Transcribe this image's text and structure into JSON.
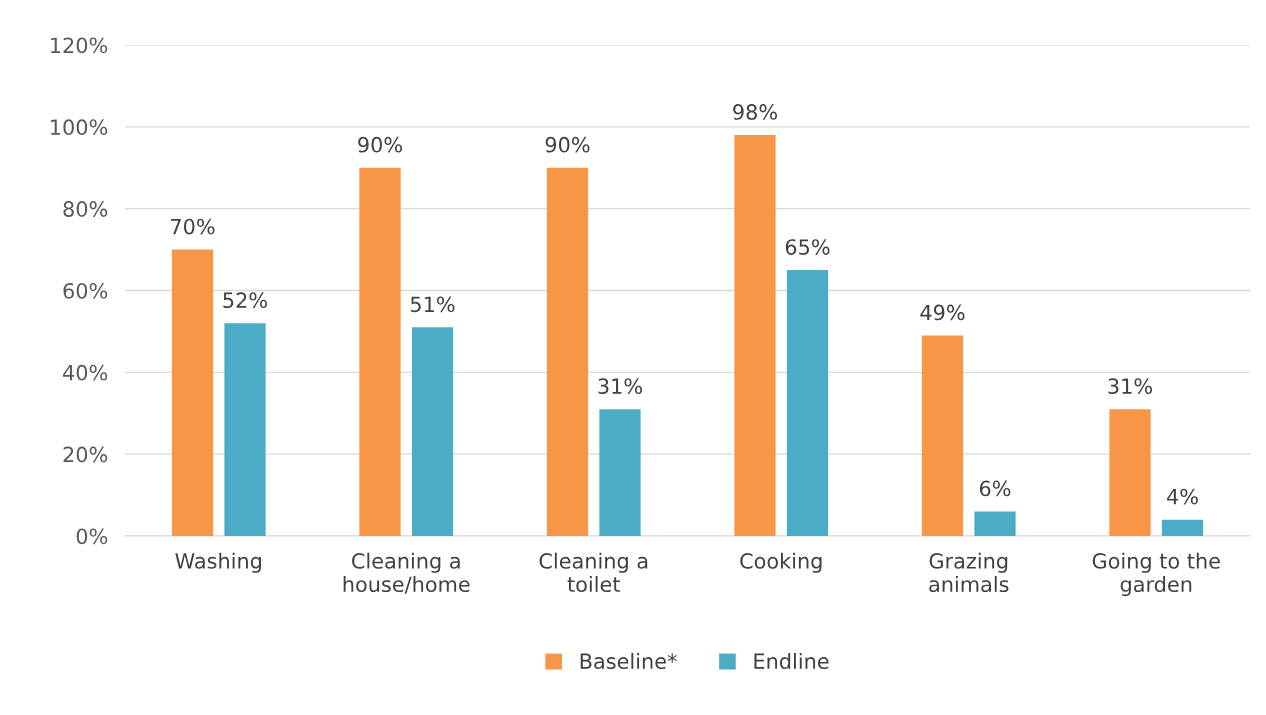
{
  "chart_data": {
    "type": "bar",
    "categories": [
      "Washing",
      "Cleaning a\nhouse/home",
      "Cleaning a\ntoilet",
      "Cooking",
      "Grazing\nanimals",
      "Going to the\ngarden"
    ],
    "series": [
      {
        "name": "Baseline*",
        "color": "#f79646",
        "values": [
          70,
          90,
          90,
          98,
          49,
          31
        ],
        "value_labels": [
          "70%",
          "90%",
          "90%",
          "98%",
          "49%",
          "31%"
        ]
      },
      {
        "name": "Endline",
        "color": "#4bacc6",
        "values": [
          52,
          51,
          31,
          65,
          6,
          4
        ],
        "value_labels": [
          "52%",
          "51%",
          "31%",
          "65%",
          "6%",
          "4%"
        ]
      }
    ],
    "ylim": [
      0,
      120
    ],
    "yticks": [
      {
        "value": 0,
        "label": "0%"
      },
      {
        "value": 20,
        "label": "20%"
      },
      {
        "value": 40,
        "label": "40%"
      },
      {
        "value": 60,
        "label": "60%"
      },
      {
        "value": 80,
        "label": "80%"
      },
      {
        "value": 100,
        "label": "100%"
      },
      {
        "value": 120,
        "label": "120%"
      }
    ],
    "grid": "y",
    "legend": "bottom"
  }
}
